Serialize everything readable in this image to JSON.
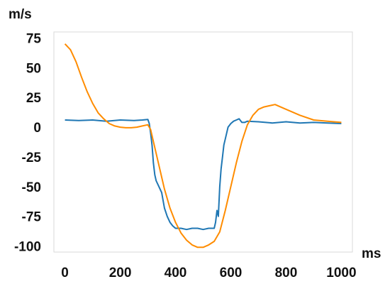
{
  "chart_data": {
    "type": "line",
    "title": "",
    "ylabel": "m/s",
    "xlabel": "ms",
    "xlim": [
      -40,
      1040
    ],
    "ylim": [
      -105,
      80
    ],
    "xticks": [
      0,
      200,
      400,
      600,
      800,
      1000
    ],
    "yticks": [
      75,
      50,
      25,
      0,
      -25,
      -50,
      -75,
      -100
    ],
    "xtick_labels": [
      "0",
      "200",
      "400",
      "600",
      "800",
      "1000"
    ],
    "ytick_labels": [
      "75",
      "50",
      "25",
      "0",
      "-25",
      "-50",
      "-75",
      "-100"
    ],
    "grid": false,
    "legend": "none",
    "series": [
      {
        "color": "#1f77b4",
        "x": [
          0,
          50,
          100,
          150,
          200,
          250,
          280,
          300,
          305,
          310,
          315,
          320,
          325,
          330,
          340,
          350,
          360,
          370,
          380,
          390,
          400,
          420,
          440,
          460,
          480,
          500,
          520,
          540,
          545,
          550,
          555,
          560,
          565,
          570,
          575,
          580,
          590,
          600,
          610,
          620,
          630,
          640,
          650,
          660,
          700,
          750,
          800,
          850,
          900,
          950,
          1000
        ],
        "y": [
          6,
          5.5,
          6,
          5,
          6,
          5.5,
          6,
          6.5,
          3,
          -5,
          -15,
          -30,
          -40,
          -45,
          -50,
          -55,
          -68,
          -75,
          -80,
          -83,
          -85,
          -85,
          -86,
          -85,
          -85,
          -86,
          -85,
          -85,
          -80,
          -70,
          -75,
          -50,
          -35,
          -25,
          -15,
          -10,
          0,
          3,
          5,
          6,
          7,
          4,
          4,
          5,
          4.5,
          3.5,
          4.5,
          3.5,
          4,
          3.5,
          3
        ]
      },
      {
        "color": "#ff8c00",
        "x": [
          0,
          20,
          40,
          60,
          80,
          100,
          120,
          140,
          160,
          180,
          200,
          220,
          240,
          260,
          280,
          300,
          310,
          320,
          340,
          360,
          380,
          400,
          420,
          440,
          460,
          480,
          500,
          520,
          540,
          560,
          580,
          600,
          620,
          640,
          660,
          680,
          700,
          720,
          740,
          760,
          780,
          800,
          850,
          900,
          950,
          1000
        ],
        "y": [
          70,
          65,
          55,
          42,
          30,
          20,
          12,
          7,
          3,
          1,
          0,
          -0.5,
          -0.5,
          0,
          1,
          2,
          -2,
          -12,
          -32,
          -52,
          -68,
          -80,
          -89,
          -95,
          -99,
          -101,
          -101,
          -99,
          -96,
          -88,
          -70,
          -50,
          -30,
          -12,
          2,
          10,
          15,
          17,
          18,
          19,
          17,
          15,
          10,
          6,
          5,
          4
        ]
      }
    ]
  }
}
